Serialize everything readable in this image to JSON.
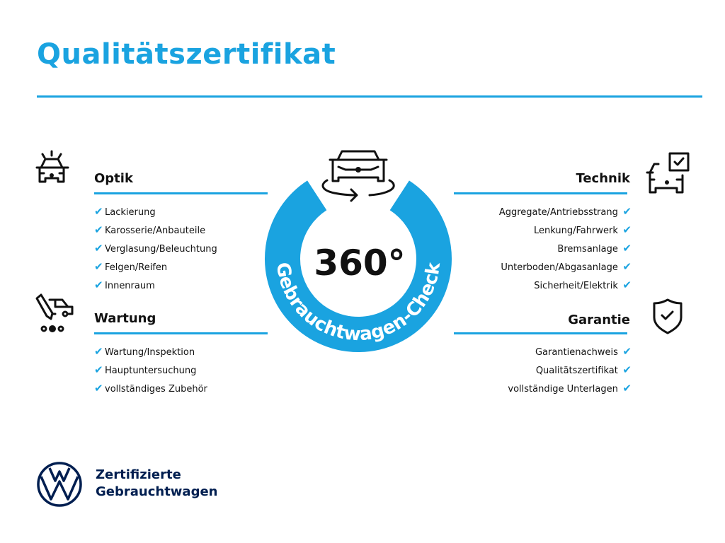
{
  "title": "Qualitätszertifikat",
  "colors": {
    "accent": "#1aa3e0",
    "brand": "#001e50"
  },
  "badge": {
    "number": "360°",
    "ring_text": "Gebrauchtwagen-Check"
  },
  "sections": {
    "optik": {
      "title": "Optik",
      "icon": "car-lights-icon",
      "items": [
        "Lackierung",
        "Karosserie/Anbauteile",
        "Verglasung/Beleuchtung",
        "Felgen/Reifen",
        "Innenraum"
      ]
    },
    "wartung": {
      "title": "Wartung",
      "icon": "car-service-icon",
      "items": [
        "Wartung/Inspektion",
        "Hauptuntersuchung",
        "vollständiges Zubehör"
      ]
    },
    "technik": {
      "title": "Technik",
      "icon": "car-checkbox-icon",
      "items": [
        "Aggregate/Antriebsstrang",
        "Lenkung/Fahrwerk",
        "Bremsanlage",
        "Unterboden/Abgasanlage",
        "Sicherheit/Elektrik"
      ]
    },
    "garantie": {
      "title": "Garantie",
      "icon": "shield-check-icon",
      "items": [
        "Garantienachweis",
        "Qualitätszertifikat",
        "vollständige Unterlagen"
      ]
    }
  },
  "check_glyph": "✔",
  "footer": {
    "line1": "Zertifizierte",
    "line2": "Gebrauchtwagen",
    "logo": "vw-logo"
  }
}
